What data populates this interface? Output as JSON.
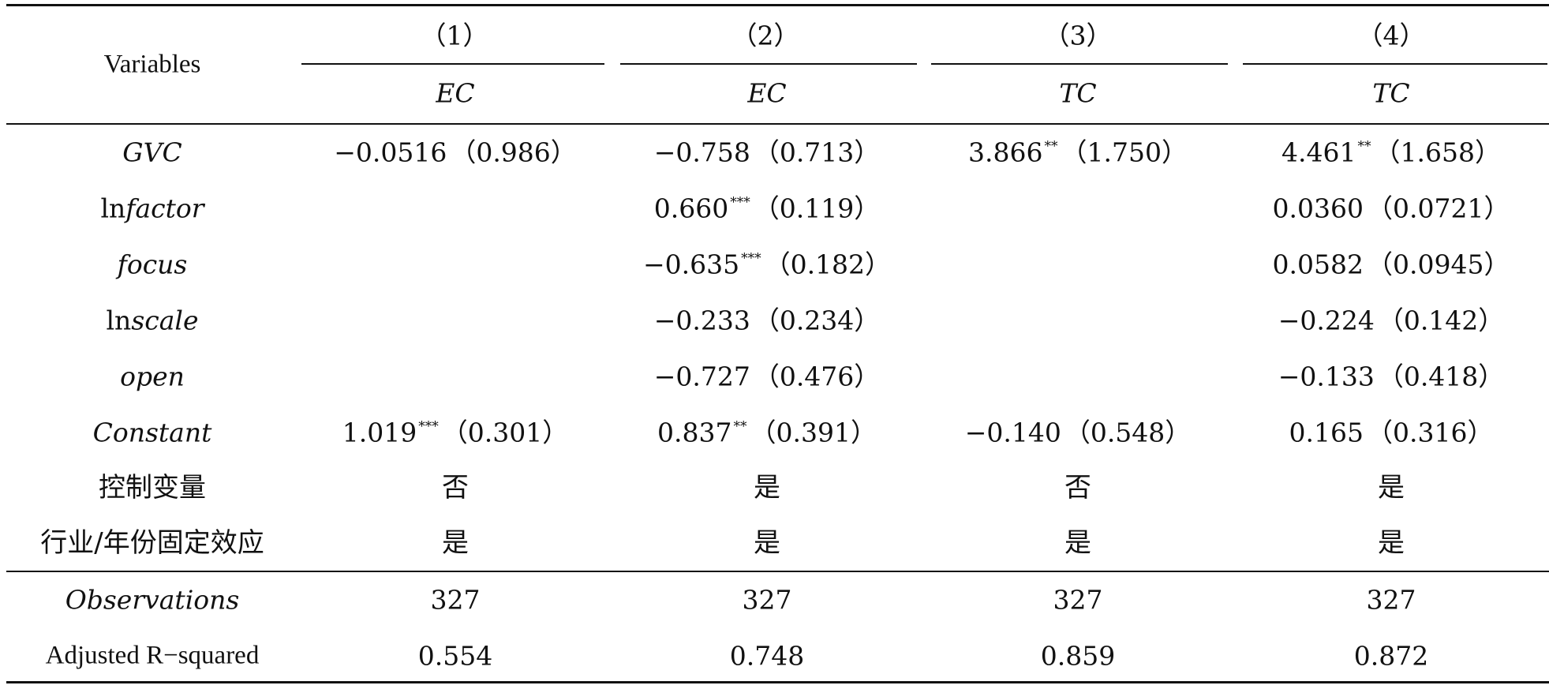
{
  "header": {
    "variables_label": "Variables",
    "columns": [
      {
        "number": "（1）",
        "dep": "EC"
      },
      {
        "number": "（2）",
        "dep": "EC"
      },
      {
        "number": "（3）",
        "dep": "TC"
      },
      {
        "number": "（4）",
        "dep": "TC"
      }
    ]
  },
  "rows": [
    {
      "name": "GVC",
      "italic": true,
      "cells": [
        {
          "coef": "−0.0516",
          "sig": "",
          "se": "（0.986）"
        },
        {
          "coef": "−0.758",
          "sig": "",
          "se": "（0.713）"
        },
        {
          "coef": "3.866",
          "sig": "**",
          "se": "（1.750）"
        },
        {
          "coef": "4.461",
          "sig": "**",
          "se": "（1.658）"
        }
      ]
    },
    {
      "name_plain": "ln",
      "name_italic": "factor",
      "cells": [
        {
          "coef": "",
          "sig": "",
          "se": ""
        },
        {
          "coef": "0.660",
          "sig": "***",
          "se": "（0.119）"
        },
        {
          "coef": "",
          "sig": "",
          "se": ""
        },
        {
          "coef": "0.0360",
          "sig": "",
          "se": "（0.0721）"
        }
      ]
    },
    {
      "name": "focus",
      "italic": true,
      "cells": [
        {
          "coef": "",
          "sig": "",
          "se": ""
        },
        {
          "coef": "−0.635",
          "sig": "***",
          "se": "（0.182）"
        },
        {
          "coef": "",
          "sig": "",
          "se": ""
        },
        {
          "coef": "0.0582",
          "sig": "",
          "se": "（0.0945）"
        }
      ]
    },
    {
      "name_plain": "ln",
      "name_italic": "scale",
      "cells": [
        {
          "coef": "",
          "sig": "",
          "se": ""
        },
        {
          "coef": "−0.233",
          "sig": "",
          "se": "（0.234）"
        },
        {
          "coef": "",
          "sig": "",
          "se": ""
        },
        {
          "coef": "−0.224",
          "sig": "",
          "se": "（0.142）"
        }
      ]
    },
    {
      "name": "open",
      "italic": true,
      "cells": [
        {
          "coef": "",
          "sig": "",
          "se": ""
        },
        {
          "coef": "−0.727",
          "sig": "",
          "se": "（0.476）"
        },
        {
          "coef": "",
          "sig": "",
          "se": ""
        },
        {
          "coef": "−0.133",
          "sig": "",
          "se": "（0.418）"
        }
      ]
    },
    {
      "name": "Constant",
      "italic": true,
      "cells": [
        {
          "coef": "1.019",
          "sig": "***",
          "se": "（0.301）"
        },
        {
          "coef": "0.837",
          "sig": "**",
          "se": "（0.391）"
        },
        {
          "coef": "−0.140",
          "sig": "",
          "se": "（0.548）"
        },
        {
          "coef": "0.165",
          "sig": "",
          "se": "（0.316）"
        }
      ]
    },
    {
      "name": "控制变量",
      "cjk": true,
      "cells": [
        "否",
        "是",
        "否",
        "是"
      ]
    },
    {
      "name": "行业/年份固定效应",
      "cjk": true,
      "cells": [
        "是",
        "是",
        "是",
        "是"
      ]
    }
  ],
  "footer_rows": [
    {
      "name": "Observations",
      "italic": true,
      "cells": [
        "327",
        "327",
        "327",
        "327"
      ]
    },
    {
      "name": "Adjusted R−squared",
      "italic": false,
      "cells": [
        "0.554",
        "0.748",
        "0.859",
        "0.872"
      ]
    }
  ]
}
